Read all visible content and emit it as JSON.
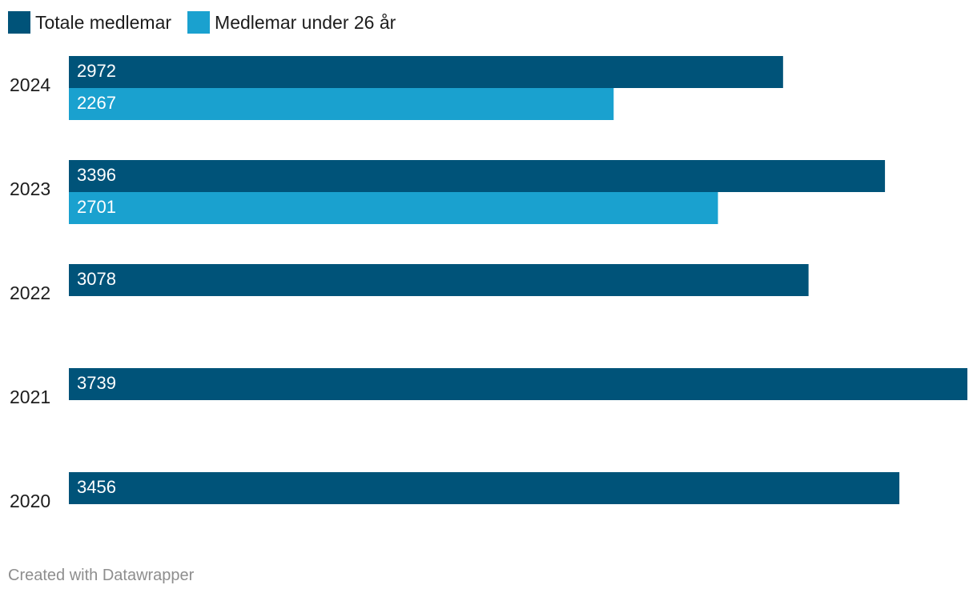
{
  "chart_data": {
    "type": "bar",
    "orientation": "horizontal",
    "categories": [
      "2024",
      "2023",
      "2022",
      "2021",
      "2020"
    ],
    "series": [
      {
        "name": "Totale medlemar",
        "color": "#005379",
        "values": [
          2972,
          3396,
          3078,
          3739,
          3456
        ]
      },
      {
        "name": "Medlemar under 26 år",
        "color": "#1aa1cf",
        "values": [
          2267,
          2701,
          null,
          null,
          null
        ]
      }
    ],
    "xlim": [
      0,
      3739
    ],
    "grid": false,
    "legend_position": "top-left",
    "data_labels": "inside-start"
  },
  "footer": {
    "credit": "Created with Datawrapper"
  }
}
